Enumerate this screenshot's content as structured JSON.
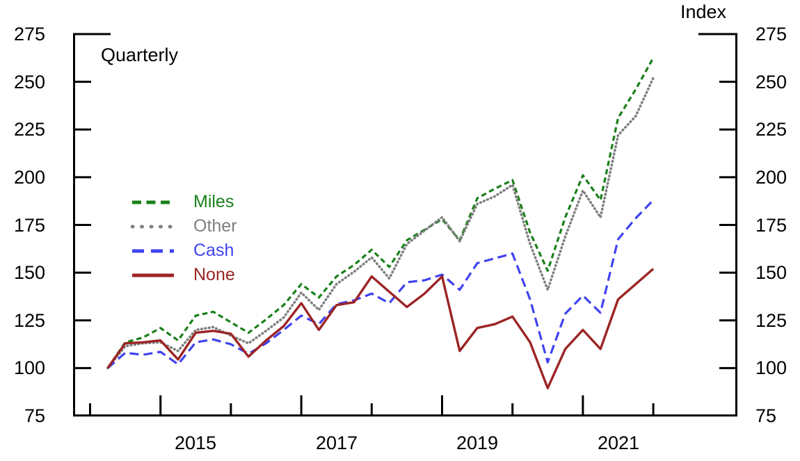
{
  "labels": {
    "index": "Index",
    "frequency": "Quarterly"
  },
  "colors": {
    "miles": "#1a801a",
    "other": "#7f7f7f",
    "cash": "#3f43ef",
    "none": "#9c2424",
    "axis": "#000000"
  },
  "legend": [
    {
      "label": "Miles",
      "series": "miles"
    },
    {
      "label": "Other",
      "series": "other"
    },
    {
      "label": "Cash",
      "series": "cash"
    },
    {
      "label": "None",
      "series": "none"
    }
  ],
  "y_axis": {
    "ticks": [
      275,
      250,
      225,
      200,
      175,
      150,
      125,
      100,
      75
    ],
    "min": 75,
    "max": 275
  },
  "x_axis": {
    "tick_years": [
      2014,
      2015,
      2016,
      2017,
      2018,
      2019,
      2020,
      2021,
      2022
    ],
    "tall_tick_years": [
      2015,
      2017,
      2019,
      2021
    ],
    "labeled_years": [
      "2015",
      "2017",
      "2019",
      "2021"
    ]
  },
  "chart_data": {
    "type": "line",
    "title": "",
    "xlabel": "",
    "ylabel": "Index",
    "frequency_note": "Quarterly",
    "ylim": [
      75,
      275
    ],
    "grid": false,
    "legend_position": "upper-left-inside",
    "x": [
      "2014Q1",
      "2014Q2",
      "2014Q3",
      "2014Q4",
      "2015Q1",
      "2015Q2",
      "2015Q3",
      "2015Q4",
      "2016Q1",
      "2016Q2",
      "2016Q3",
      "2016Q4",
      "2017Q1",
      "2017Q2",
      "2017Q3",
      "2017Q4",
      "2018Q1",
      "2018Q2",
      "2018Q3",
      "2018Q4",
      "2019Q1",
      "2019Q2",
      "2019Q3",
      "2019Q4",
      "2020Q1",
      "2020Q2",
      "2020Q3",
      "2020Q4",
      "2021Q1",
      "2021Q2",
      "2021Q3",
      "2021Q4"
    ],
    "series": [
      {
        "name": "Miles",
        "key": "miles",
        "line_style": "dashed",
        "values": [
          100,
          113.5,
          116,
          121,
          114.5,
          127.5,
          129.5,
          124,
          118.5,
          125.5,
          133,
          144,
          137,
          148,
          154,
          162,
          153,
          167,
          172.5,
          178,
          167,
          189,
          194,
          198.5,
          171,
          151,
          179,
          201,
          188,
          231,
          246,
          262.5
        ]
      },
      {
        "name": "Other",
        "key": "other",
        "line_style": "dotted",
        "values": [
          100,
          111.5,
          113,
          113.5,
          109,
          120,
          121.5,
          117,
          113,
          119.5,
          126.5,
          139.5,
          130.5,
          144,
          150.5,
          158,
          147,
          165,
          172,
          179,
          166.5,
          186,
          190,
          196,
          165,
          141,
          169,
          193,
          179,
          222,
          232,
          252
        ]
      },
      {
        "name": "Cash",
        "key": "cash",
        "line_style": "long-dashed",
        "values": [
          100,
          108,
          107,
          108.5,
          102,
          113.5,
          115,
          112.5,
          107.5,
          113,
          120,
          127.5,
          123,
          133.5,
          135.5,
          139,
          134,
          145,
          146,
          149,
          141,
          155,
          157.5,
          160,
          136,
          103,
          128.5,
          138,
          129,
          167.5,
          178.5,
          188
        ]
      },
      {
        "name": "None",
        "key": "none",
        "line_style": "solid",
        "values": [
          100,
          113,
          113.5,
          114.5,
          104.5,
          118.5,
          119.5,
          118,
          106,
          114.5,
          122,
          134,
          120,
          133,
          134.5,
          148,
          140,
          132,
          139,
          148,
          109,
          121,
          123,
          127,
          113.5,
          89.5,
          110,
          120,
          110,
          136,
          144,
          152
        ]
      }
    ]
  }
}
